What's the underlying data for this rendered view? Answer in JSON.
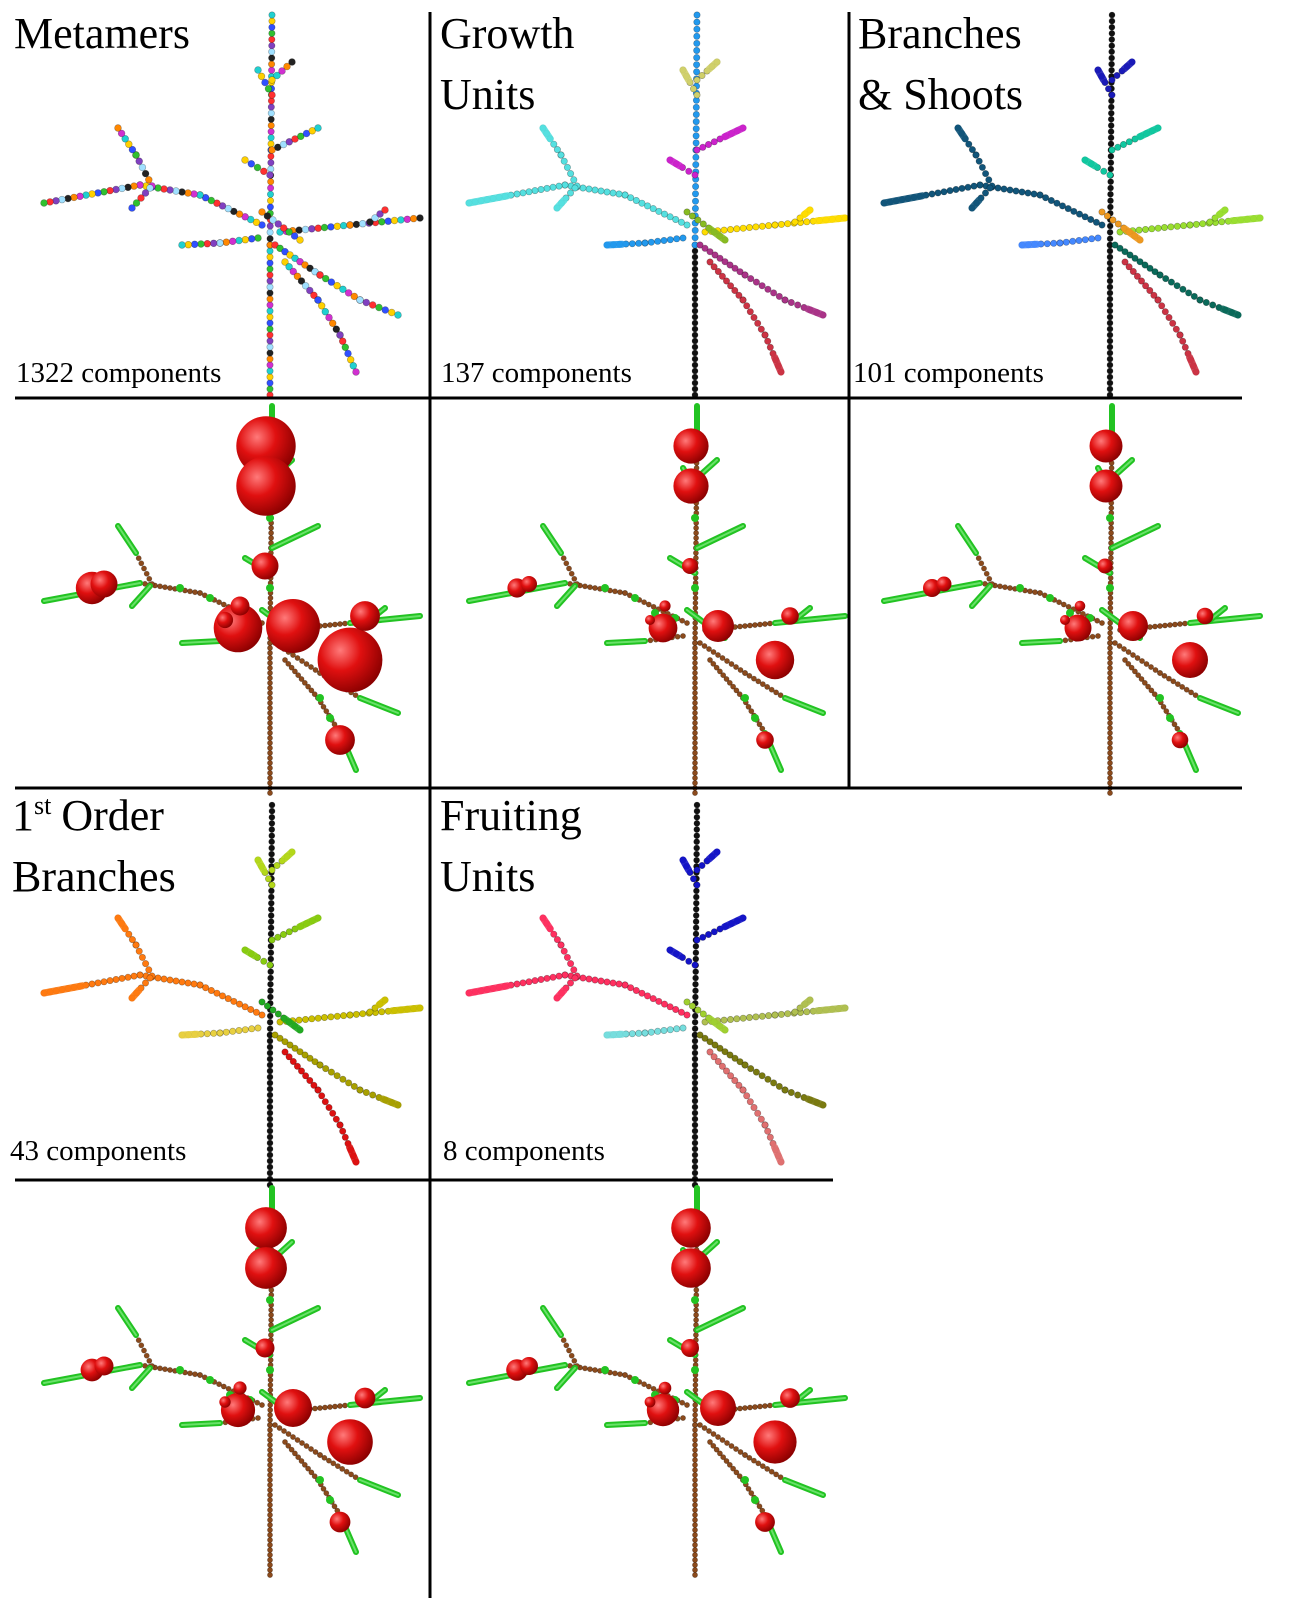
{
  "panels": [
    {
      "id": "metamers",
      "title_lines": [
        "Metamers"
      ],
      "count": "1322 components",
      "coloring": "random"
    },
    {
      "id": "growth-units",
      "title_lines": [
        "Growth",
        "Units"
      ],
      "count": "137 components",
      "coloring": "groups"
    },
    {
      "id": "branches-shoots",
      "title_lines": [
        "Branches",
        "& Shoots"
      ],
      "count": "101 components",
      "coloring": "groups"
    },
    {
      "id": "first-order",
      "title_parts": {
        "number": "1",
        "superscript": "st",
        "rest": "Order"
      },
      "title_line2": "Branches",
      "count": "43 components",
      "coloring": "groups"
    },
    {
      "id": "fruiting-units",
      "title_lines": [
        "Fruiting",
        "Units"
      ],
      "count": "8 components",
      "coloring": "groups"
    }
  ],
  "fruit_panels": [
    {
      "id": "metamers-fruit",
      "fruit_scale": 1.35
    },
    {
      "id": "growth-units-fruit",
      "fruit_scale": 0.8
    },
    {
      "id": "branches-shoots-fruit",
      "fruit_scale": 0.75
    },
    {
      "id": "first-order-fruit",
      "fruit_scale": 0.95
    },
    {
      "id": "fruiting-units-fruit",
      "fruit_scale": 0.9
    }
  ],
  "colors": {
    "trunk": "#8b4a1c",
    "leafy_shoot": "#22c322",
    "fruit": "#e01010",
    "divider": "#000000"
  }
}
